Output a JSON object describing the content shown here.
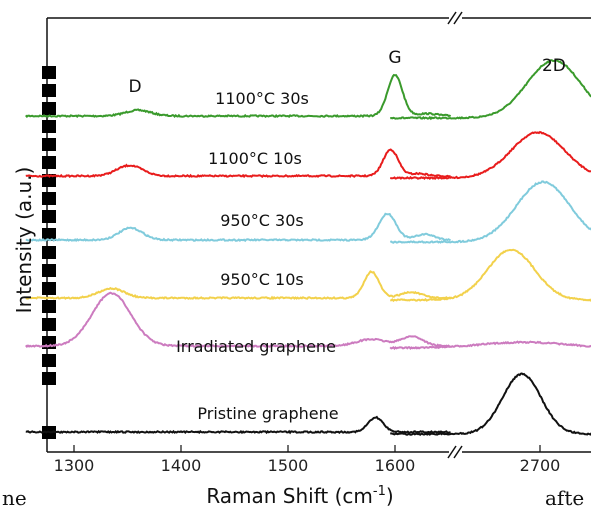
{
  "chart_data": {
    "type": "line",
    "xlabel": "Raman Shift (cm",
    "xlabel_sup": "-1",
    "xlabel_end": ")",
    "ylabel": "Intensity (a.u.)",
    "axis_break": true,
    "x_left_range": [
      1275,
      1655
    ],
    "x_right_range": [
      2555,
      2760
    ],
    "xticks_left": [
      1300,
      1400,
      1500,
      1600
    ],
    "xticks_right": [
      2700
    ],
    "xtick_labels": [
      "1300",
      "1400",
      "1500",
      "1600",
      "2700"
    ],
    "peak_labels": [
      {
        "text": "D",
        "x": 1357
      },
      {
        "text": "G",
        "x": 1600
      },
      {
        "text": "2D",
        "x": 2713
      }
    ],
    "series": [
      {
        "name": "1100°C  30s",
        "color": "#3a9a2c",
        "offset": 5,
        "peaks": [
          [
            1360,
            0.12,
            12
          ],
          [
            1600,
            0.85,
            7
          ],
          [
            1630,
            0.05,
            10
          ],
          [
            2713,
            1.2,
            25
          ]
        ]
      },
      {
        "name": "1100°C  10s",
        "color": "#e81c1c",
        "offset": 4,
        "peaks": [
          [
            1352,
            0.22,
            12
          ],
          [
            1596,
            0.55,
            7
          ],
          [
            1622,
            0.05,
            8
          ],
          [
            2698,
            0.95,
            25
          ]
        ]
      },
      {
        "name": "950°C  30s",
        "color": "#80cbdc",
        "offset": 3,
        "peaks": [
          [
            1353,
            0.25,
            11
          ],
          [
            1593,
            0.55,
            8
          ],
          [
            1628,
            0.12,
            9
          ],
          [
            2703,
            1.25,
            25
          ]
        ]
      },
      {
        "name": "950°C  10s",
        "color": "#f2d14c",
        "offset": 2,
        "peaks": [
          [
            1335,
            0.2,
            12
          ],
          [
            1578,
            0.55,
            7
          ],
          [
            1615,
            0.12,
            10
          ],
          [
            2673,
            1.05,
            22
          ]
        ]
      },
      {
        "name": "Irradiated graphene",
        "color": "#cc7bbf",
        "offset": 1,
        "peaks": [
          [
            1335,
            1.1,
            18
          ],
          [
            1578,
            0.14,
            14
          ],
          [
            1616,
            0.2,
            10
          ],
          [
            2685,
            0.12,
            40
          ]
        ]
      },
      {
        "name": "Pristine graphene",
        "color": "#111111",
        "offset": 0,
        "peaks": [
          [
            1582,
            0.3,
            7
          ],
          [
            2683,
            1.25,
            18
          ]
        ]
      }
    ]
  },
  "fragments": {
    "left": "ne",
    "right": "afte"
  }
}
